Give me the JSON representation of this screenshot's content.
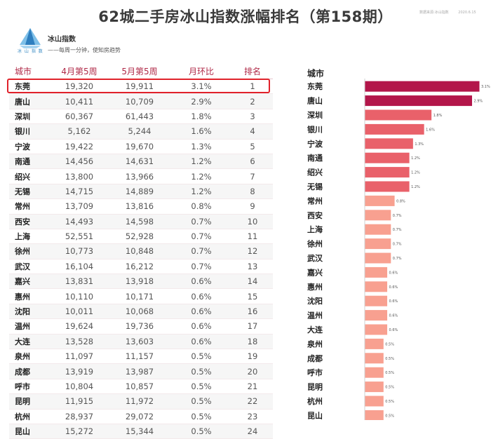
{
  "title": "62城二手房冰山指数涨幅排名（第158期）",
  "top_right": {
    "source": "数据来源:冰山指数",
    "date": "2020.6.15"
  },
  "logo": {
    "name": "冰山指数",
    "brand": "冰 山 指 数",
    "slogan": "——每周一分钟，使知房趋势",
    "color": "#3a8cc4"
  },
  "table": {
    "headers": [
      "城市",
      "4月第5周",
      "5月第5周",
      "月环比",
      "排名"
    ],
    "rows": [
      {
        "city": "东莞",
        "apr": "19,320",
        "may": "19,911",
        "mom": "3.1%",
        "rank": "1"
      },
      {
        "city": "唐山",
        "apr": "10,411",
        "may": "10,709",
        "mom": "2.9%",
        "rank": "2"
      },
      {
        "city": "深圳",
        "apr": "60,367",
        "may": "61,443",
        "mom": "1.8%",
        "rank": "3"
      },
      {
        "city": "银川",
        "apr": "5,162",
        "may": "5,244",
        "mom": "1.6%",
        "rank": "4"
      },
      {
        "city": "宁波",
        "apr": "19,422",
        "may": "19,670",
        "mom": "1.3%",
        "rank": "5"
      },
      {
        "city": "南通",
        "apr": "14,456",
        "may": "14,631",
        "mom": "1.2%",
        "rank": "6"
      },
      {
        "city": "绍兴",
        "apr": "13,800",
        "may": "13,966",
        "mom": "1.2%",
        "rank": "7"
      },
      {
        "city": "无锡",
        "apr": "14,715",
        "may": "14,889",
        "mom": "1.2%",
        "rank": "8"
      },
      {
        "city": "常州",
        "apr": "13,709",
        "may": "13,816",
        "mom": "0.8%",
        "rank": "9"
      },
      {
        "city": "西安",
        "apr": "14,493",
        "may": "14,598",
        "mom": "0.7%",
        "rank": "10"
      },
      {
        "city": "上海",
        "apr": "52,551",
        "may": "52,928",
        "mom": "0.7%",
        "rank": "11"
      },
      {
        "city": "徐州",
        "apr": "10,773",
        "may": "10,848",
        "mom": "0.7%",
        "rank": "12"
      },
      {
        "city": "武汉",
        "apr": "16,104",
        "may": "16,212",
        "mom": "0.7%",
        "rank": "13"
      },
      {
        "city": "嘉兴",
        "apr": "13,831",
        "may": "13,918",
        "mom": "0.6%",
        "rank": "14"
      },
      {
        "city": "惠州",
        "apr": "10,110",
        "may": "10,171",
        "mom": "0.6%",
        "rank": "15"
      },
      {
        "city": "沈阳",
        "apr": "10,011",
        "may": "10,068",
        "mom": "0.6%",
        "rank": "16"
      },
      {
        "city": "温州",
        "apr": "19,624",
        "may": "19,736",
        "mom": "0.6%",
        "rank": "17"
      },
      {
        "city": "大连",
        "apr": "13,528",
        "may": "13,603",
        "mom": "0.6%",
        "rank": "18"
      },
      {
        "city": "泉州",
        "apr": "11,097",
        "may": "11,157",
        "mom": "0.5%",
        "rank": "19"
      },
      {
        "city": "成都",
        "apr": "13,919",
        "may": "13,987",
        "mom": "0.5%",
        "rank": "20"
      },
      {
        "city": "呼市",
        "apr": "10,804",
        "may": "10,857",
        "mom": "0.5%",
        "rank": "21"
      },
      {
        "city": "昆明",
        "apr": "11,915",
        "may": "11,972",
        "mom": "0.5%",
        "rank": "22"
      },
      {
        "city": "杭州",
        "apr": "28,937",
        "may": "29,072",
        "mom": "0.5%",
        "rank": "23"
      },
      {
        "city": "昆山",
        "apr": "15,272",
        "may": "15,344",
        "mom": "0.5%",
        "rank": "24"
      }
    ]
  },
  "chart_data": {
    "type": "bar",
    "orientation": "horizontal",
    "title": "",
    "category_header": "城市",
    "categories": [
      "东莞",
      "唐山",
      "深圳",
      "银川",
      "宁波",
      "南通",
      "绍兴",
      "无锡",
      "常州",
      "西安",
      "上海",
      "徐州",
      "武汉",
      "嘉兴",
      "惠州",
      "沈阳",
      "温州",
      "大连",
      "泉州",
      "成都",
      "呼市",
      "昆明",
      "杭州",
      "昆山"
    ],
    "values": [
      3.1,
      2.9,
      1.8,
      1.6,
      1.3,
      1.2,
      1.2,
      1.2,
      0.8,
      0.7,
      0.7,
      0.7,
      0.7,
      0.6,
      0.6,
      0.6,
      0.6,
      0.6,
      0.5,
      0.5,
      0.5,
      0.5,
      0.5,
      0.5
    ],
    "labels": [
      "3.1%",
      "2.9%",
      "1.8%",
      "1.6%",
      "1.3%",
      "1.2%",
      "1.2%",
      "1.2%",
      "0.8%",
      "0.7%",
      "0.7%",
      "0.7%",
      "0.7%",
      "0.6%",
      "0.6%",
      "0.6%",
      "0.6%",
      "0.6%",
      "0.5%",
      "0.5%",
      "0.5%",
      "0.5%",
      "0.5%",
      "0.5%"
    ],
    "unit": "%",
    "xlim": [
      0,
      3.1
    ],
    "colors": {
      "top": "#b3164a",
      "mid": "#e9616a",
      "low": "#f8a090",
      "axis": "#d0d0d0"
    }
  }
}
